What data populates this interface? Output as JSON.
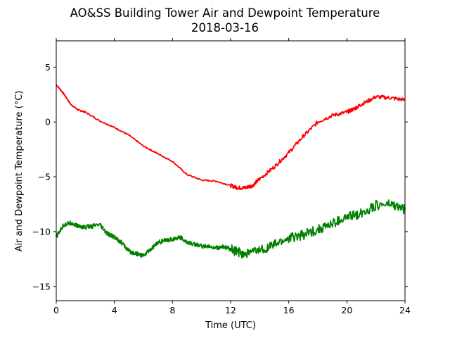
{
  "chart_data": {
    "type": "line",
    "title": "AO&SS Building Tower Air and Dewpoint Temperature",
    "subtitle": "2018-03-16",
    "xlabel": "Time (UTC)",
    "ylabel": "Air and Dewpoint Temperature (°C)",
    "xlim": [
      0,
      24
    ],
    "ylim": [
      -16.3,
      7.4
    ],
    "x_ticks": [
      0,
      4,
      8,
      12,
      16,
      20,
      24
    ],
    "x_tick_labels": [
      "0",
      "4",
      "8",
      "12",
      "16",
      "20",
      "24"
    ],
    "y_ticks": [
      5,
      0,
      -5,
      -10,
      -15
    ],
    "y_tick_labels": [
      "5",
      "0",
      "−5",
      "−10",
      "−15"
    ],
    "grid": false,
    "series": [
      {
        "color": "#ff0000",
        "x": [
          0,
          0.5,
          1,
          1.5,
          2,
          3,
          4,
          5,
          6,
          7,
          8,
          9,
          10,
          11,
          12,
          12.5,
          13,
          13.5,
          14,
          15,
          16,
          17,
          18,
          19,
          20,
          20.5,
          21,
          22,
          23,
          24
        ],
        "y": [
          3.4,
          2.6,
          1.6,
          1.1,
          0.9,
          0.1,
          -0.5,
          -1.2,
          -2.2,
          -2.9,
          -3.6,
          -4.8,
          -5.3,
          -5.4,
          -5.8,
          -6.0,
          -6.0,
          -5.8,
          -5.2,
          -4.1,
          -2.8,
          -1.3,
          0.0,
          0.6,
          0.9,
          1.2,
          1.6,
          2.3,
          2.2,
          2.0
        ]
      },
      {
        "color": "#008000",
        "x": [
          0,
          0.5,
          1,
          1.5,
          2,
          3,
          3.5,
          4,
          4.5,
          5,
          5.5,
          6,
          6.5,
          7,
          7.5,
          8,
          8.5,
          9,
          10,
          11,
          11.5,
          12,
          12.5,
          13,
          14,
          15,
          16,
          17,
          18,
          19,
          20,
          21,
          22,
          23,
          24
        ],
        "y": [
          -10.5,
          -9.4,
          -9.2,
          -9.5,
          -9.6,
          -9.4,
          -10.2,
          -10.5,
          -11.0,
          -11.8,
          -12.0,
          -12.2,
          -11.6,
          -11.0,
          -10.8,
          -10.7,
          -10.5,
          -11.0,
          -11.3,
          -11.5,
          -11.4,
          -11.6,
          -11.9,
          -12.0,
          -11.7,
          -11.2,
          -10.6,
          -10.3,
          -9.8,
          -9.3,
          -8.7,
          -8.3,
          -7.6,
          -7.5,
          -8.0
        ]
      }
    ]
  }
}
